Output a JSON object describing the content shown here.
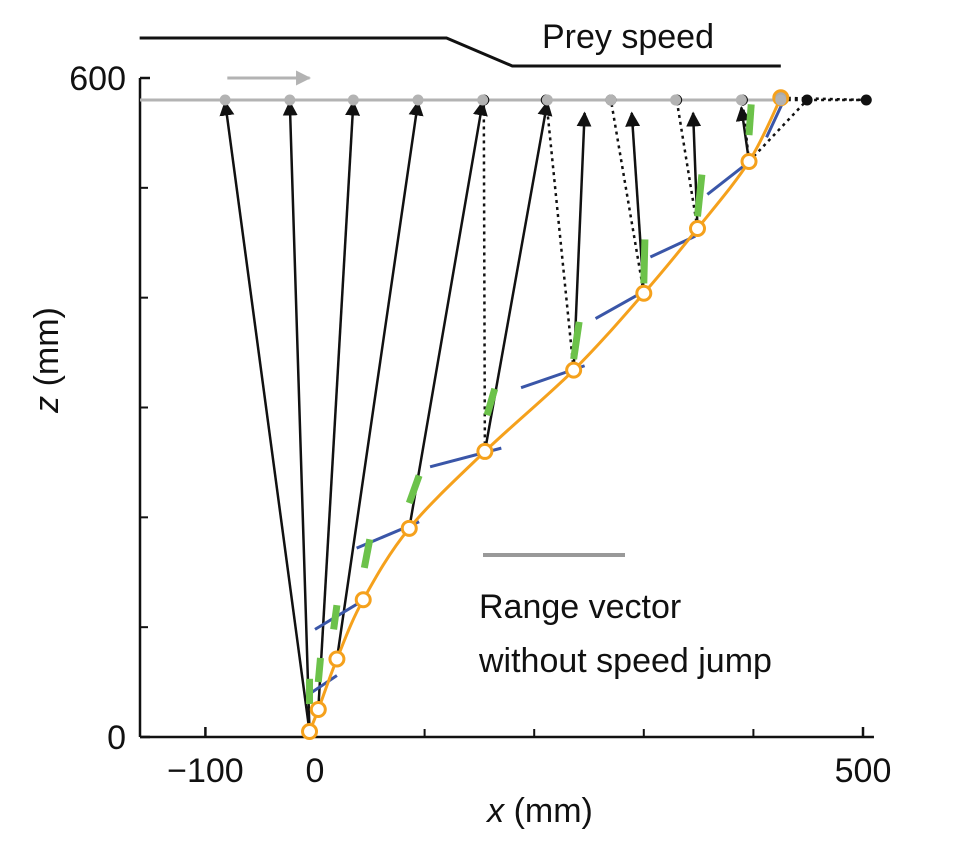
{
  "chart_data": {
    "type": "line",
    "title": "Prey speed",
    "xlabel_var": "x",
    "xlabel_unit": " (mm)",
    "ylabel_var": "z",
    "ylabel_unit": " (mm)",
    "xlim": [
      -160,
      510
    ],
    "ylim": [
      0,
      600
    ],
    "x_tick_labels": [
      {
        "value": -100,
        "label": "−100"
      },
      {
        "value": 0,
        "label": "0"
      },
      {
        "value": 500,
        "label": "500"
      }
    ],
    "x_minor_ticks": [
      100,
      200,
      300,
      400
    ],
    "y_tick_labels": [
      {
        "value": 0,
        "label": "0"
      },
      {
        "value": 600,
        "label": "600"
      }
    ],
    "y_minor_ticks": [
      100,
      200,
      300,
      400,
      500
    ],
    "prey_speed_profile": {
      "slow": {
        "x0": -160,
        "x1": 120
      },
      "fast": {
        "x0": 180,
        "x1": 425
      }
    },
    "prey_track_z": 580,
    "prey_direction_arrow": {
      "x0": -80,
      "x1": -5
    },
    "prey_positions_gray": [
      -82,
      -23,
      35,
      94,
      153,
      212,
      270,
      329,
      389,
      425
    ],
    "prey_positions_black": [
      154,
      211,
      270,
      330,
      390,
      449,
      503
    ],
    "pursuer_path": [
      {
        "x": -5,
        "z": 5
      },
      {
        "x": 3,
        "z": 25
      },
      {
        "x": 20,
        "z": 71
      },
      {
        "x": 44,
        "z": 125
      },
      {
        "x": 86,
        "z": 190
      },
      {
        "x": 155,
        "z": 260
      },
      {
        "x": 236,
        "z": 334
      },
      {
        "x": 300,
        "z": 404
      },
      {
        "x": 349,
        "z": 463
      },
      {
        "x": 396,
        "z": 524
      },
      {
        "x": 425,
        "z": 582
      }
    ],
    "range_vectors_solid": [
      {
        "from": [
          -5,
          5
        ],
        "to": [
          -82,
          580
        ]
      },
      {
        "from": [
          -5,
          5
        ],
        "to": [
          -23,
          580
        ]
      },
      {
        "from": [
          3,
          25
        ],
        "to": [
          35,
          580
        ]
      },
      {
        "from": [
          20,
          71
        ],
        "to": [
          94,
          580
        ]
      },
      {
        "from": [
          86,
          190
        ],
        "to": [
          153,
          580
        ]
      },
      {
        "from": [
          155,
          260
        ],
        "to": [
          212,
          580
        ]
      },
      {
        "from": [
          236,
          334
        ],
        "to": [
          246,
          570
        ]
      },
      {
        "from": [
          300,
          404
        ],
        "to": [
          289,
          570
        ]
      },
      {
        "from": [
          349,
          463
        ],
        "to": [
          345,
          570
        ]
      },
      {
        "from": [
          396,
          524
        ],
        "to": [
          389,
          575
        ]
      }
    ],
    "range_vectors_dotted": [
      {
        "from": [
          155,
          260
        ],
        "to": [
          154,
          580
        ]
      },
      {
        "from": [
          236,
          334
        ],
        "to": [
          211,
          580
        ]
      },
      {
        "from": [
          300,
          404
        ],
        "to": [
          270,
          580
        ]
      },
      {
        "from": [
          349,
          463
        ],
        "to": [
          330,
          580
        ]
      },
      {
        "from": [
          396,
          524
        ],
        "to": [
          390,
          580
        ]
      },
      {
        "from": [
          396,
          524
        ],
        "to": [
          449,
          580
        ]
      },
      {
        "from": [
          425,
          582
        ],
        "to": [
          503,
          580
        ]
      }
    ],
    "blue_segments": [
      {
        "from": [
          -4,
          40
        ],
        "to": [
          20,
          56
        ]
      },
      {
        "from": [
          0,
          98
        ],
        "to": [
          45,
          125
        ]
      },
      {
        "from": [
          38,
          172
        ],
        "to": [
          95,
          196
        ]
      },
      {
        "from": [
          105,
          246
        ],
        "to": [
          170,
          263
        ]
      },
      {
        "from": [
          188,
          318
        ],
        "to": [
          246,
          338
        ]
      },
      {
        "from": [
          256,
          381
        ],
        "to": [
          306,
          409
        ]
      },
      {
        "from": [
          306,
          437
        ],
        "to": [
          347,
          456
        ]
      },
      {
        "from": [
          358,
          494
        ],
        "to": [
          399,
          526
        ]
      },
      {
        "from": [
          412,
          546
        ],
        "to": [
          426,
          576
        ]
      }
    ],
    "green_segments": [
      {
        "from": [
          -5,
          30
        ],
        "to": [
          -5,
          53
        ]
      },
      {
        "from": [
          3,
          50
        ],
        "to": [
          5,
          72
        ]
      },
      {
        "from": [
          17,
          98
        ],
        "to": [
          20,
          120
        ]
      },
      {
        "from": [
          45,
          154
        ],
        "to": [
          50,
          180
        ]
      },
      {
        "from": [
          86,
          213
        ],
        "to": [
          95,
          238
        ]
      },
      {
        "from": [
          157,
          293
        ],
        "to": [
          164,
          317
        ]
      },
      {
        "from": [
          236,
          344
        ],
        "to": [
          241,
          378
        ]
      },
      {
        "from": [
          300,
          413
        ],
        "to": [
          301,
          453
        ]
      },
      {
        "from": [
          349,
          474
        ],
        "to": [
          353,
          512
        ]
      },
      {
        "from": [
          396,
          548
        ],
        "to": [
          398,
          576
        ]
      }
    ],
    "legend": [
      {
        "label_line1": "Range vector",
        "label_line2": "without speed jump",
        "style": "gray-line"
      }
    ],
    "colors": {
      "pursuer_path": "#f5a11c",
      "blue_segment": "#3a56a8",
      "green_segment": "#6cc24a",
      "range_vector": "#111111",
      "prey_gray": "#b3b3b3",
      "legend_line": "#999999",
      "axis": "#111111"
    }
  }
}
